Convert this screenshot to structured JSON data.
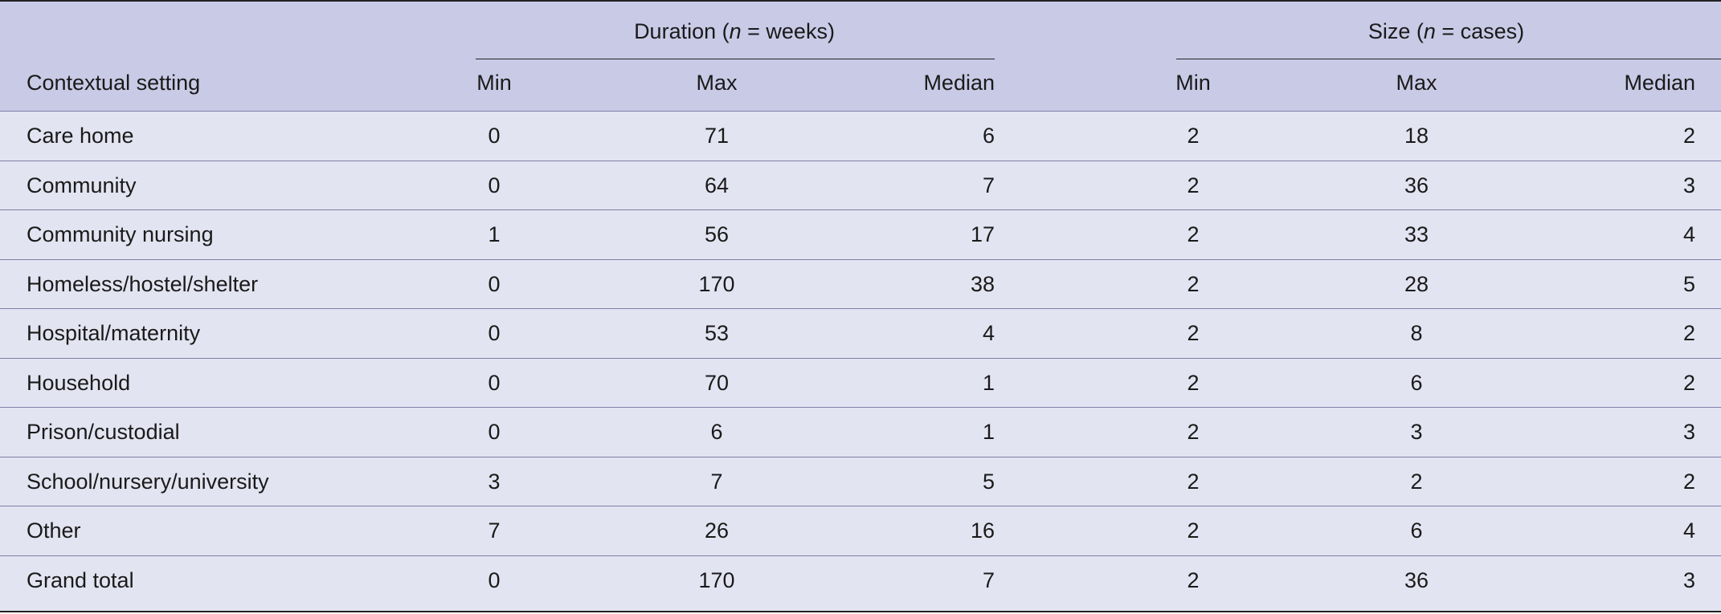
{
  "table": {
    "header": {
      "setting": "Contextual setting",
      "duration_group": {
        "prefix": "Duration (",
        "n": "n",
        "suffix": " = weeks)"
      },
      "size_group": {
        "prefix": "Size (",
        "n": "n",
        "suffix": " = cases)"
      },
      "cols": [
        "Min",
        "Max",
        "Median",
        "Min",
        "Max",
        "Median"
      ]
    },
    "rows": [
      {
        "setting": "Care home",
        "values": [
          "0",
          "71",
          "6",
          "2",
          "18",
          "2"
        ]
      },
      {
        "setting": "Community",
        "values": [
          "0",
          "64",
          "7",
          "2",
          "36",
          "3"
        ]
      },
      {
        "setting": "Community nursing",
        "values": [
          "1",
          "56",
          "17",
          "2",
          "33",
          "4"
        ]
      },
      {
        "setting": "Homeless/hostel/shelter",
        "values": [
          "0",
          "170",
          "38",
          "2",
          "28",
          "5"
        ]
      },
      {
        "setting": "Hospital/maternity",
        "values": [
          "0",
          "53",
          "4",
          "2",
          "8",
          "2"
        ]
      },
      {
        "setting": "Household",
        "values": [
          "0",
          "70",
          "1",
          "2",
          "6",
          "2"
        ]
      },
      {
        "setting": "Prison/custodial",
        "values": [
          "0",
          "6",
          "1",
          "2",
          "3",
          "3"
        ]
      },
      {
        "setting": "School/nursery/university",
        "values": [
          "3",
          "7",
          "5",
          "2",
          "2",
          "2"
        ]
      },
      {
        "setting": "Other",
        "values": [
          "7",
          "26",
          "16",
          "2",
          "6",
          "4"
        ]
      },
      {
        "setting": "Grand total",
        "values": [
          "0",
          "170",
          "7",
          "2",
          "36",
          "3"
        ]
      }
    ]
  }
}
